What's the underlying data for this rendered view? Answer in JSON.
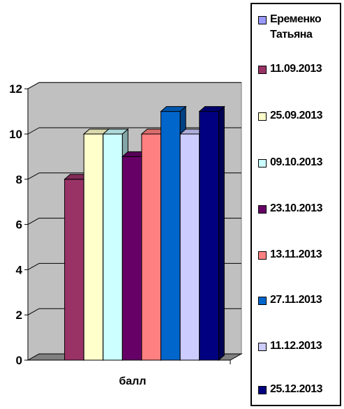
{
  "chart_data": {
    "type": "bar",
    "categories": [
      "балл"
    ],
    "series": [
      {
        "name": "Еременко Татьяна",
        "color": "#9999FF",
        "values": [
          0
        ]
      },
      {
        "name": "11.09.2013",
        "color": "#993366",
        "values": [
          8
        ]
      },
      {
        "name": "25.09.2013",
        "color": "#FFFFCC",
        "values": [
          10
        ]
      },
      {
        "name": "09.10.2013",
        "color": "#CCFFFF",
        "values": [
          10
        ]
      },
      {
        "name": "23.10.2013",
        "color": "#660066",
        "values": [
          9
        ]
      },
      {
        "name": "13.11.2013",
        "color": "#FF8080",
        "values": [
          10
        ]
      },
      {
        "name": "27.11.2013",
        "color": "#0066CC",
        "values": [
          11
        ]
      },
      {
        "name": "11.12.2013",
        "color": "#CCCCFF",
        "values": [
          10
        ]
      },
      {
        "name": "25.12.2013",
        "color": "#000080",
        "values": [
          11
        ]
      }
    ],
    "y_ticks": [
      "0",
      "2",
      "4",
      "6",
      "8",
      "10",
      "12"
    ],
    "ylim": [
      0,
      12
    ],
    "xlabel": "",
    "ylabel": "",
    "grid": true,
    "legend_position": "right",
    "style": "3d-clustered-column"
  }
}
